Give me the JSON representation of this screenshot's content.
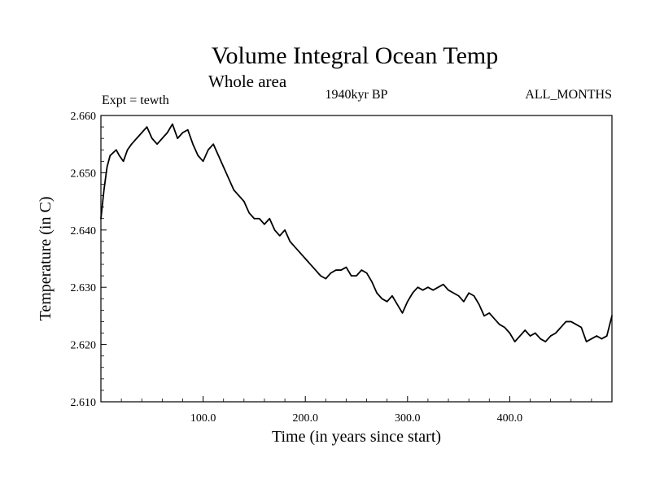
{
  "chart_data": {
    "type": "line",
    "title": "Volume Integral Ocean Temp",
    "subtitle": "Whole area",
    "left_note": "Expt = tewth",
    "center_note": "1940kyr BP",
    "right_note": "ALL_MONTHS",
    "xlabel": "Time (in years since start)",
    "ylabel": "Temperature (in C)",
    "xlim": [
      0,
      500
    ],
    "ylim": [
      2.61,
      2.66
    ],
    "x_ticks": [
      100,
      200,
      300,
      400
    ],
    "x_tick_labels": [
      "100.0",
      "200.0",
      "300.0",
      "400.0"
    ],
    "y_ticks": [
      2.61,
      2.62,
      2.63,
      2.64,
      2.65,
      2.66
    ],
    "y_tick_labels": [
      "2.610",
      "2.620",
      "2.630",
      "2.640",
      "2.650",
      "2.660"
    ],
    "grid": false,
    "series": [
      {
        "name": "Volume Integral Ocean Temp",
        "x": [
          0,
          3,
          6,
          9,
          12,
          15,
          18,
          22,
          26,
          30,
          35,
          40,
          45,
          50,
          55,
          60,
          65,
          70,
          75,
          80,
          85,
          90,
          95,
          100,
          105,
          110,
          115,
          120,
          125,
          130,
          135,
          140,
          145,
          150,
          155,
          160,
          165,
          170,
          175,
          180,
          185,
          190,
          195,
          200,
          205,
          210,
          215,
          220,
          225,
          230,
          235,
          240,
          245,
          250,
          255,
          260,
          265,
          270,
          275,
          280,
          285,
          290,
          295,
          300,
          305,
          310,
          315,
          320,
          325,
          330,
          335,
          340,
          345,
          350,
          355,
          360,
          365,
          370,
          375,
          380,
          385,
          390,
          395,
          400,
          405,
          410,
          415,
          420,
          425,
          430,
          435,
          440,
          445,
          450,
          455,
          460,
          465,
          470,
          475,
          480,
          485,
          490,
          495,
          500
        ],
        "values": [
          2.642,
          2.647,
          2.651,
          2.653,
          2.6535,
          2.654,
          2.653,
          2.652,
          2.654,
          2.655,
          2.656,
          2.657,
          2.658,
          2.656,
          2.655,
          2.656,
          2.657,
          2.6585,
          2.656,
          2.657,
          2.6575,
          2.655,
          2.653,
          2.652,
          2.654,
          2.655,
          2.653,
          2.651,
          2.649,
          2.647,
          2.646,
          2.645,
          2.643,
          2.642,
          2.642,
          2.641,
          2.642,
          2.64,
          2.639,
          2.64,
          2.638,
          2.637,
          2.636,
          2.635,
          2.634,
          2.633,
          2.632,
          2.6315,
          2.6325,
          2.633,
          2.633,
          2.6335,
          2.632,
          2.632,
          2.633,
          2.6325,
          2.631,
          2.629,
          2.628,
          2.6275,
          2.6285,
          2.627,
          2.6255,
          2.6275,
          2.629,
          2.63,
          2.6295,
          2.63,
          2.6295,
          2.63,
          2.6305,
          2.6295,
          2.629,
          2.6285,
          2.6275,
          2.629,
          2.6285,
          2.627,
          2.625,
          2.6255,
          2.6245,
          2.6235,
          2.623,
          2.622,
          2.6205,
          2.6215,
          2.6225,
          2.6215,
          2.622,
          2.621,
          2.6205,
          2.6215,
          2.622,
          2.623,
          2.624,
          2.624,
          2.6235,
          2.623,
          2.6205,
          2.621,
          2.6215,
          2.621,
          2.6215,
          2.625
        ]
      }
    ]
  }
}
